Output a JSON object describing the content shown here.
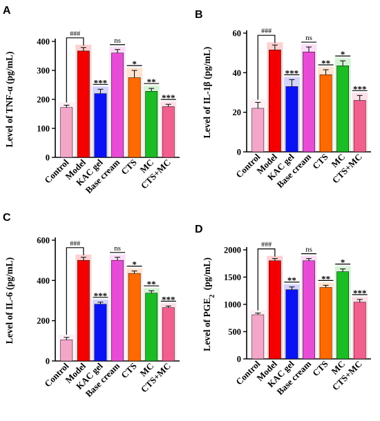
{
  "colors": {
    "Control": "#f4a6c8",
    "Model": "#f40000",
    "KAC gel": "#0a13f6",
    "Base cream": "#e84cd6",
    "CTS": "#ff6a00",
    "MC": "#1bbd24",
    "CTS+MC": "#f25f8c"
  },
  "chart_data": [
    {
      "type": "bar",
      "panel": "A",
      "ylabel": "Level of TNF-α (pg/mL)",
      "ylim": [
        0,
        400
      ],
      "yticks": [
        0,
        100,
        200,
        300,
        400
      ],
      "categories": [
        "Control",
        "Model",
        "KAC gel",
        "Base cream",
        "CTS",
        "MC",
        "CTS+MC"
      ],
      "values": [
        172,
        367,
        220,
        360,
        275,
        228,
        175
      ],
      "errors": [
        8,
        12,
        15,
        12,
        25,
        10,
        8
      ],
      "model_marker": "###",
      "significance": [
        "",
        "",
        "***",
        "ns",
        "*",
        "**",
        "***"
      ]
    },
    {
      "type": "bar",
      "panel": "B",
      "ylabel": "Level of IL-1β (pg/mL)",
      "ylim": [
        0,
        60
      ],
      "yticks": [
        0,
        20,
        40,
        60
      ],
      "categories": [
        "Control",
        "Model",
        "KAC gel",
        "Base cream",
        "CTS",
        "MC",
        "CTS+MC"
      ],
      "values": [
        22,
        51.5,
        33,
        50.5,
        39,
        43.5,
        26
      ],
      "errors": [
        3,
        2.5,
        3.5,
        2.5,
        2.5,
        2.5,
        2.5
      ],
      "model_marker": "###",
      "significance": [
        "",
        "",
        "***",
        "ns",
        "**",
        "*",
        "***"
      ]
    },
    {
      "type": "bar",
      "panel": "C",
      "ylabel": "Level of IL-6 (pg/mL)",
      "ylim": [
        0,
        600
      ],
      "yticks": [
        0,
        200,
        400,
        600
      ],
      "categories": [
        "Control",
        "Model",
        "KAC gel",
        "Base cream",
        "CTS",
        "MC",
        "CTS+MC"
      ],
      "values": [
        105,
        500,
        282,
        500,
        435,
        337,
        265
      ],
      "errors": [
        12,
        15,
        10,
        15,
        12,
        12,
        8
      ],
      "model_marker": "###",
      "significance": [
        "",
        "",
        "***",
        "ns",
        "*",
        "**",
        "***"
      ]
    },
    {
      "type": "bar",
      "panel": "D",
      "ylabel": "Level of PGE2 (pg/mL)",
      "ylim": [
        0,
        2000
      ],
      "yticks": [
        0,
        500,
        1000,
        1500,
        2000
      ],
      "categories": [
        "Control",
        "Model",
        "KAC gel",
        "Base cream",
        "CTS",
        "MC",
        "CTS+MC"
      ],
      "values": [
        810,
        1800,
        1270,
        1800,
        1310,
        1600,
        1040
      ],
      "errors": [
        30,
        40,
        50,
        40,
        40,
        50,
        50
      ],
      "model_marker": "###",
      "significance": [
        "",
        "",
        "**",
        "ns",
        "**",
        "*",
        "***"
      ]
    }
  ]
}
